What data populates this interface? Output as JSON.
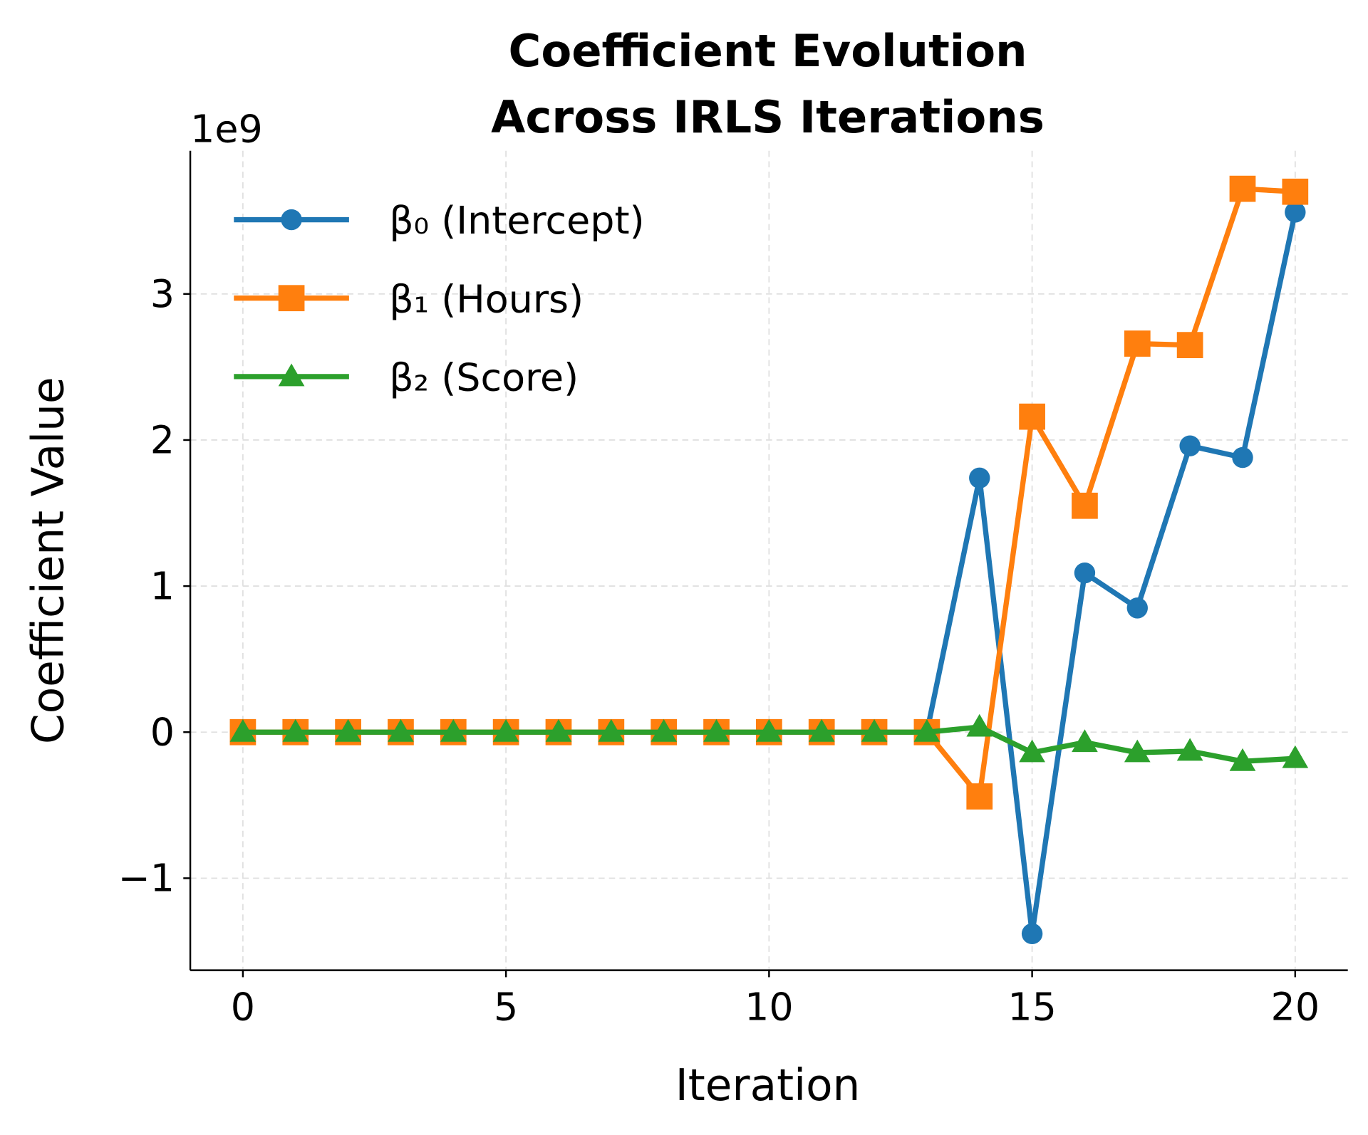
{
  "chart_data": {
    "type": "line",
    "title": "Coefficient Evolution\nAcross IRLS Iterations",
    "title_lines": [
      "Coefficient Evolution",
      "Across IRLS Iterations"
    ],
    "xlabel": "Iteration",
    "ylabel": "Coefficient Value",
    "y_offset_label": "1e9",
    "xlim": [
      -1,
      21
    ],
    "ylim": [
      -1.63,
      3.98
    ],
    "y_scale_factor": 1000000000.0,
    "xticks": [
      0,
      5,
      10,
      15,
      20
    ],
    "xtick_labels": [
      "0",
      "5",
      "10",
      "15",
      "20"
    ],
    "yticks": [
      -1,
      0,
      1,
      2,
      3
    ],
    "ytick_labels": [
      "−1",
      "0",
      "1",
      "2",
      "3"
    ],
    "grid": true,
    "legend_position": "upper-left",
    "x": [
      0,
      1,
      2,
      3,
      4,
      5,
      6,
      7,
      8,
      9,
      10,
      11,
      12,
      13,
      14,
      15,
      16,
      17,
      18,
      19,
      20
    ],
    "series": [
      {
        "name": "β₀ (Intercept)",
        "color": "#1f77b4",
        "marker": "circle",
        "values": [
          0,
          0,
          0,
          0,
          0,
          0,
          0,
          0,
          0,
          0,
          0,
          0,
          0,
          0,
          1.74,
          -1.38,
          1.09,
          0.85,
          1.96,
          1.88,
          3.56
        ]
      },
      {
        "name": "β₁ (Hours)",
        "color": "#ff7f0e",
        "marker": "square",
        "values": [
          0,
          0,
          0,
          0,
          0,
          0,
          0,
          0,
          0,
          0,
          0,
          0,
          0,
          0,
          -0.44,
          2.16,
          1.55,
          2.66,
          2.65,
          3.72,
          3.7
        ]
      },
      {
        "name": "β₂ (Score)",
        "color": "#2ca02c",
        "marker": "triangle",
        "values": [
          0,
          0,
          0,
          0,
          0,
          0,
          0,
          0,
          0,
          0,
          0,
          0,
          0,
          0,
          0.035,
          -0.14,
          -0.07,
          -0.14,
          -0.13,
          -0.2,
          -0.18
        ]
      }
    ]
  }
}
